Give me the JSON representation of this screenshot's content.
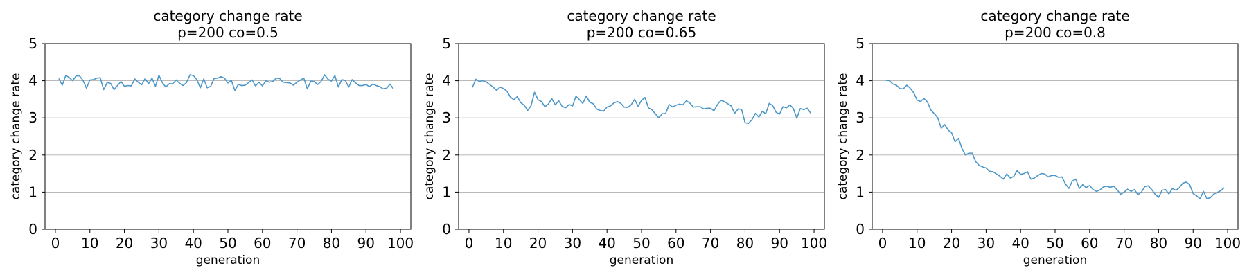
{
  "chart_data": [
    {
      "type": "line",
      "title": "category change rate",
      "subtitle": "p=200 co=0.5",
      "xlabel": "generation",
      "ylabel": "category change rate",
      "xlim": [
        -3,
        103
      ],
      "ylim": [
        0,
        5
      ],
      "xticks": [
        0,
        10,
        20,
        30,
        40,
        50,
        60,
        70,
        80,
        90,
        100
      ],
      "yticks": [
        0,
        1,
        2,
        3,
        4,
        5
      ],
      "grid": "horizontal",
      "line_color": "#4c96c8",
      "x_start": 1,
      "y": [
        4.06,
        3.88,
        4.14,
        4.09,
        4.0,
        4.13,
        4.13,
        4.01,
        3.8,
        4.02,
        4.03,
        4.07,
        4.08,
        3.76,
        3.95,
        3.93,
        3.76,
        3.87,
        3.98,
        3.85,
        3.87,
        3.86,
        4.05,
        3.96,
        3.89,
        4.06,
        3.92,
        4.07,
        3.85,
        4.15,
        3.95,
        3.83,
        3.92,
        3.92,
        4.02,
        3.93,
        3.87,
        3.95,
        4.16,
        4.14,
        4.03,
        3.81,
        4.05,
        3.81,
        3.85,
        4.06,
        4.07,
        4.11,
        4.07,
        3.94,
        4.01,
        3.74,
        3.9,
        3.87,
        3.88,
        3.95,
        4.02,
        3.86,
        3.96,
        3.86,
        4.0,
        3.96,
        3.98,
        4.07,
        4.06,
        3.96,
        3.95,
        3.94,
        3.88,
        3.96,
        4.02,
        4.07,
        3.78,
        3.99,
        3.98,
        3.9,
        3.98,
        4.16,
        4.04,
        3.99,
        4.14,
        3.83,
        4.03,
        4.01,
        3.83,
        4.03,
        3.94,
        3.87,
        3.87,
        3.9,
        3.84,
        3.91,
        3.87,
        3.84,
        3.78,
        3.8,
        3.91,
        3.77
      ]
    },
    {
      "type": "line",
      "title": "category change rate",
      "subtitle": "p=200 co=0.65",
      "xlabel": "generation",
      "ylabel": "category change rate",
      "xlim": [
        -3,
        103
      ],
      "ylim": [
        0,
        5
      ],
      "xticks": [
        0,
        10,
        20,
        30,
        40,
        50,
        60,
        70,
        80,
        90,
        100
      ],
      "yticks": [
        0,
        1,
        2,
        3,
        4,
        5
      ],
      "grid": "horizontal",
      "line_color": "#4c96c8",
      "x_start": 1,
      "y": [
        3.82,
        4.04,
        3.98,
        4.0,
        3.97,
        3.9,
        3.83,
        3.74,
        3.83,
        3.79,
        3.72,
        3.56,
        3.49,
        3.57,
        3.41,
        3.34,
        3.2,
        3.33,
        3.69,
        3.49,
        3.44,
        3.3,
        3.37,
        3.52,
        3.35,
        3.46,
        3.31,
        3.27,
        3.36,
        3.32,
        3.58,
        3.49,
        3.39,
        3.59,
        3.42,
        3.38,
        3.24,
        3.2,
        3.18,
        3.29,
        3.32,
        3.4,
        3.44,
        3.39,
        3.29,
        3.28,
        3.35,
        3.5,
        3.31,
        3.47,
        3.55,
        3.27,
        3.22,
        3.11,
        3.0,
        3.11,
        3.12,
        3.36,
        3.29,
        3.34,
        3.37,
        3.35,
        3.46,
        3.4,
        3.29,
        3.3,
        3.3,
        3.24,
        3.26,
        3.26,
        3.19,
        3.36,
        3.47,
        3.44,
        3.38,
        3.32,
        3.12,
        3.24,
        3.23,
        2.87,
        2.85,
        2.95,
        3.12,
        3.02,
        3.18,
        3.11,
        3.39,
        3.33,
        3.15,
        3.1,
        3.3,
        3.27,
        3.35,
        3.25,
        2.99,
        3.25,
        3.22,
        3.26,
        3.13
      ]
    },
    {
      "type": "line",
      "title": "category change rate",
      "subtitle": "p=200 co=0.8",
      "xlabel": "generation",
      "ylabel": "category change rate",
      "xlim": [
        -3,
        103
      ],
      "ylim": [
        0,
        5
      ],
      "xticks": [
        0,
        10,
        20,
        30,
        40,
        50,
        60,
        70,
        80,
        90,
        100
      ],
      "yticks": [
        0,
        1,
        2,
        3,
        4,
        5
      ],
      "grid": "horizontal",
      "line_color": "#4c96c8",
      "x_start": 1,
      "y": [
        4.01,
        4.0,
        3.91,
        3.88,
        3.79,
        3.78,
        3.88,
        3.8,
        3.68,
        3.48,
        3.44,
        3.52,
        3.43,
        3.21,
        3.11,
        3.0,
        2.72,
        2.82,
        2.67,
        2.6,
        2.36,
        2.45,
        2.18,
        2.0,
        2.05,
        2.05,
        1.82,
        1.72,
        1.68,
        1.65,
        1.56,
        1.55,
        1.49,
        1.43,
        1.35,
        1.49,
        1.38,
        1.42,
        1.58,
        1.48,
        1.5,
        1.55,
        1.35,
        1.38,
        1.45,
        1.5,
        1.49,
        1.41,
        1.45,
        1.45,
        1.4,
        1.41,
        1.22,
        1.1,
        1.3,
        1.35,
        1.1,
        1.2,
        1.12,
        1.18,
        1.07,
        1.02,
        1.06,
        1.14,
        1.16,
        1.13,
        1.16,
        1.06,
        0.94,
        1.0,
        1.08,
        1.02,
        1.07,
        0.93,
        1.0,
        1.15,
        1.17,
        1.07,
        0.94,
        0.86,
        1.05,
        1.07,
        0.95,
        1.1,
        1.05,
        1.12,
        1.24,
        1.27,
        1.2,
        0.96,
        0.9,
        0.82,
        1.02,
        0.82,
        0.85,
        0.95,
        0.99,
        1.04,
        1.12
      ]
    }
  ]
}
